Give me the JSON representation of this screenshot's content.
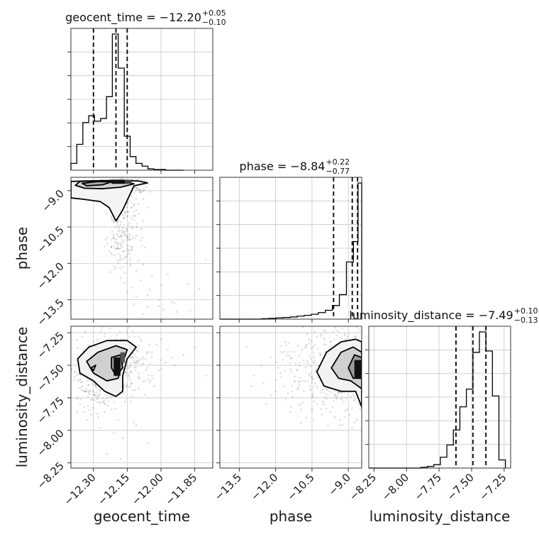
{
  "chart_data": {
    "type": "corner",
    "parameters": [
      "geocent_time",
      "phase",
      "luminosity_distance"
    ],
    "titles": {
      "geocent_time": {
        "prefix": "geocent_time = −12.20",
        "upper": "+0.05",
        "lower": "−0.10"
      },
      "phase": {
        "prefix": "phase = −8.84",
        "upper": "+0.22",
        "lower": "−0.77"
      },
      "luminosity_distance": {
        "prefix": "luminosity_distance = −7.49",
        "upper": "+0.10",
        "lower": "−0.13"
      }
    },
    "ranges": {
      "geocent_time": [
        -12.4,
        -11.77
      ],
      "phase": [
        -14.3,
        -8.45
      ],
      "luminosity_distance": [
        -8.29,
        -7.2
      ]
    },
    "ticks": {
      "geocent_time": [
        -12.3,
        -12.15,
        -12.0,
        -11.85
      ],
      "phase": [
        -13.5,
        -12.0,
        -10.5,
        -9.0
      ],
      "luminosity_distance": [
        -8.25,
        -8.0,
        -7.75,
        -7.5,
        -7.25
      ]
    },
    "tick_labels": {
      "geocent_time": [
        "−12.30",
        "−12.15",
        "−12.00",
        "−11.85"
      ],
      "phase": [
        "−13.5",
        "−12.0",
        "−10.5",
        "−9.0"
      ],
      "luminosity_distance": [
        "−8.25",
        "−8.00",
        "−7.75",
        "−7.50",
        "−7.25"
      ]
    },
    "quantiles": {
      "geocent_time": [
        -12.3,
        -12.2,
        -12.15
      ],
      "phase": [
        -9.61,
        -8.84,
        -8.62
      ],
      "luminosity_distance": [
        -7.62,
        -7.49,
        -7.39
      ]
    },
    "histograms": {
      "geocent_time": {
        "edges": [
          -12.4,
          -12.374,
          -12.347,
          -12.321,
          -12.295,
          -12.268,
          -12.242,
          -12.216,
          -12.19,
          -12.163,
          -12.137,
          -12.111,
          -12.084,
          -12.058,
          -12.032,
          -12.005,
          -11.979,
          -11.953,
          -11.926,
          -11.9
        ],
        "counts": [
          0.05,
          0.19,
          0.35,
          0.4,
          0.36,
          0.38,
          0.54,
          1.0,
          0.75,
          0.25,
          0.1,
          0.05,
          0.03,
          0.01,
          0.005,
          0.005,
          0,
          0,
          0
        ]
      },
      "phase": {
        "edges": [
          -14.3,
          -14.01,
          -13.72,
          -13.43,
          -13.14,
          -12.85,
          -12.56,
          -12.27,
          -11.98,
          -11.69,
          -11.4,
          -11.11,
          -10.82,
          -10.53,
          -10.24,
          -9.95,
          -9.66,
          -9.37,
          -9.08,
          -8.79,
          -8.6,
          -8.45
        ],
        "counts": [
          0.0,
          0.0,
          0.0,
          0.0,
          0.0,
          0.0,
          0.003,
          0.006,
          0.009,
          0.012,
          0.016,
          0.022,
          0.028,
          0.036,
          0.048,
          0.065,
          0.1,
          0.18,
          0.42,
          0.57,
          1.0
        ]
      },
      "luminosity_distance": {
        "edges": [
          -8.29,
          -8.24,
          -8.19,
          -8.14,
          -8.09,
          -8.04,
          -7.99,
          -7.94,
          -7.89,
          -7.84,
          -7.79,
          -7.74,
          -7.69,
          -7.64,
          -7.59,
          -7.54,
          -7.49,
          -7.44,
          -7.39,
          -7.34,
          -7.29,
          -7.24
        ],
        "counts": [
          0,
          0,
          0,
          0,
          0,
          0,
          0,
          0,
          0.005,
          0.012,
          0.025,
          0.08,
          0.17,
          0.28,
          0.45,
          0.58,
          0.85,
          1.0,
          0.86,
          0.53,
          0.06
        ]
      }
    },
    "scatter_phase_vs_geocent_time": {
      "x": [
        -12.34,
        -12.31,
        -12.28,
        -12.26,
        -12.23,
        -12.21,
        -12.2,
        -12.19,
        -12.18,
        -12.17,
        -12.16,
        -12.15,
        -12.14,
        -12.13,
        -12.12,
        -12.11,
        -12.1,
        -12.08,
        -12.06,
        -12.22,
        -12.21,
        -12.2,
        -12.19,
        -12.18,
        -12.17,
        -12.16,
        -12.15,
        -12.14,
        -12.13,
        -12.12,
        -12.1,
        -12.08,
        -12.21,
        -12.2,
        -12.19,
        -12.18,
        -12.17,
        -12.16,
        -12.15,
        -12.13,
        -12.11,
        -12.09,
        -12.2,
        -12.19,
        -12.18,
        -12.17,
        -12.15,
        -12.13,
        -12.1,
        -12.07,
        -12.19,
        -12.18,
        -12.16,
        -12.14,
        -12.11,
        -12.08,
        -12.04,
        -12.18,
        -12.16,
        -12.13,
        -12.09,
        -12.05,
        -12.0,
        -12.15,
        -12.11,
        -12.06,
        -12.01,
        -11.95,
        -12.12,
        -12.06,
        -11.99,
        -11.93,
        -12.08,
        -12.01,
        -11.94,
        -11.87,
        -11.97,
        -11.88,
        -11.83,
        -11.8
      ],
      "y": [
        -8.7,
        -8.65,
        -8.72,
        -8.8,
        -8.62,
        -8.75,
        -8.68,
        -8.85,
        -8.95,
        -9.1,
        -9.3,
        -9.5,
        -9.4,
        -9.2,
        -9.6,
        -9.8,
        -9.55,
        -9.35,
        -9.7,
        -10.1,
        -10.3,
        -10.5,
        -10.2,
        -10.4,
        -10.0,
        -9.9,
        -10.6,
        -10.35,
        -10.15,
        -10.05,
        -9.95,
        -10.25,
        -10.8,
        -11.0,
        -11.2,
        -10.9,
        -11.1,
        -10.7,
        -10.95,
        -11.3,
        -10.85,
        -11.05,
        -11.4,
        -11.6,
        -11.8,
        -11.5,
        -11.7,
        -11.45,
        -11.9,
        -11.35,
        -12.0,
        -12.2,
        -12.4,
        -12.1,
        -12.3,
        -12.05,
        -12.5,
        -12.6,
        -12.8,
        -13.0,
        -12.7,
        -13.1,
        -12.9,
        -13.2,
        -13.4,
        -13.3,
        -13.5,
        -13.6,
        -13.7,
        -13.8,
        -13.9,
        -14.0,
        -14.1,
        -13.75,
        -13.65,
        -13.95,
        -12.45,
        -12.85,
        -13.05,
        -11.85
      ]
    },
    "scatter_luminosity_distance_vs_geocent_time": {
      "x": [
        -12.38,
        -12.36,
        -12.35,
        -12.33,
        -12.32,
        -12.3,
        -12.29,
        -12.28,
        -12.27,
        -12.26,
        -12.25,
        -12.24,
        -12.23,
        -12.22,
        -12.21,
        -12.2,
        -12.19,
        -12.18,
        -12.17,
        -12.16,
        -12.15,
        -12.14,
        -12.13,
        -12.12,
        -12.11,
        -12.1,
        -12.09,
        -12.08,
        -12.06,
        -12.04,
        -12.02,
        -12.0,
        -11.97,
        -11.94,
        -11.9,
        -11.85,
        -11.8,
        -12.37,
        -12.34,
        -12.31,
        -12.28,
        -12.25,
        -12.22,
        -12.19,
        -12.16,
        -12.13,
        -12.1,
        -12.07,
        -12.04,
        -12.01,
        -11.98,
        -11.95,
        -12.35,
        -12.3,
        -12.25,
        -12.2,
        -12.15,
        -12.1,
        -12.05,
        -12.0,
        -12.33,
        -12.27,
        -12.21,
        -12.17,
        -12.11,
        -12.06,
        -12.24,
        -12.18,
        -12.12,
        -12.03
      ],
      "y": [
        -7.55,
        -7.62,
        -7.48,
        -7.7,
        -7.58,
        -7.42,
        -7.66,
        -7.74,
        -7.5,
        -7.38,
        -7.8,
        -7.56,
        -7.44,
        -7.62,
        -7.35,
        -7.52,
        -7.7,
        -7.46,
        -7.32,
        -7.58,
        -7.4,
        -7.28,
        -7.64,
        -7.36,
        -7.48,
        -7.56,
        -7.3,
        -7.44,
        -7.52,
        -7.4,
        -7.34,
        -7.46,
        -7.38,
        -7.5,
        -7.42,
        -7.36,
        -7.58,
        -7.75,
        -7.82,
        -7.88,
        -7.9,
        -7.86,
        -7.84,
        -7.92,
        -7.78,
        -7.74,
        -7.68,
        -7.62,
        -7.58,
        -7.54,
        -7.48,
        -7.44,
        -7.28,
        -7.32,
        -7.26,
        -7.3,
        -7.24,
        -7.28,
        -7.34,
        -7.3,
        -7.92,
        -7.98,
        -8.02,
        -8.06,
        -7.96,
        -8.1,
        -8.18,
        -8.22,
        -7.94,
        -7.66
      ]
    },
    "scatter_luminosity_distance_vs_phase": {
      "x": [
        -12.6,
        -12.2,
        -11.8,
        -11.5,
        -11.2,
        -11.0,
        -10.8,
        -10.6,
        -10.4,
        -10.2,
        -10.0,
        -9.9,
        -9.8,
        -9.7,
        -9.6,
        -9.5,
        -9.4,
        -9.3,
        -9.2,
        -9.1,
        -9.0,
        -8.9,
        -8.8,
        -8.7,
        -8.6,
        -8.55,
        -13.2,
        -12.9,
        -12.5,
        -12.0,
        -11.6,
        -11.3,
        -11.0,
        -10.7,
        -10.5,
        -10.3,
        -10.1,
        -9.95,
        -9.75,
        -9.55,
        -9.35,
        -9.15,
        -8.95,
        -8.75,
        -13.0,
        -12.4,
        -11.9,
        -11.4,
        -10.9,
        -10.45,
        -10.05,
        -9.65,
        -9.25,
        -8.85,
        -11.7,
        -11.1,
        -10.6,
        -10.15,
        -9.85,
        -9.45,
        -9.05,
        -8.65,
        -10.9,
        -10.35,
        -9.9,
        -9.5,
        -9.1,
        -8.7
      ],
      "y": [
        -7.5,
        -7.44,
        -7.56,
        -7.4,
        -7.62,
        -7.48,
        -7.36,
        -7.58,
        -7.44,
        -7.52,
        -7.34,
        -7.66,
        -7.42,
        -7.56,
        -7.3,
        -7.48,
        -7.7,
        -7.38,
        -7.6,
        -7.32,
        -7.54,
        -7.74,
        -7.46,
        -7.28,
        -7.64,
        -7.8,
        -7.36,
        -7.58,
        -7.64,
        -7.7,
        -7.32,
        -7.74,
        -7.8,
        -7.26,
        -7.84,
        -7.28,
        -7.88,
        -7.24,
        -7.86,
        -7.9,
        -7.92,
        -7.26,
        -7.88,
        -7.94,
        -7.66,
        -7.8,
        -7.52,
        -7.86,
        -7.62,
        -7.72,
        -7.78,
        -7.82,
        -7.96,
        -7.98,
        -7.46,
        -7.54,
        -7.66,
        -7.42,
        -7.68,
        -7.34,
        -7.84,
        -7.92,
        -7.38,
        -7.64,
        -7.76,
        -7.58,
        -7.3,
        -7.44
      ]
    }
  }
}
